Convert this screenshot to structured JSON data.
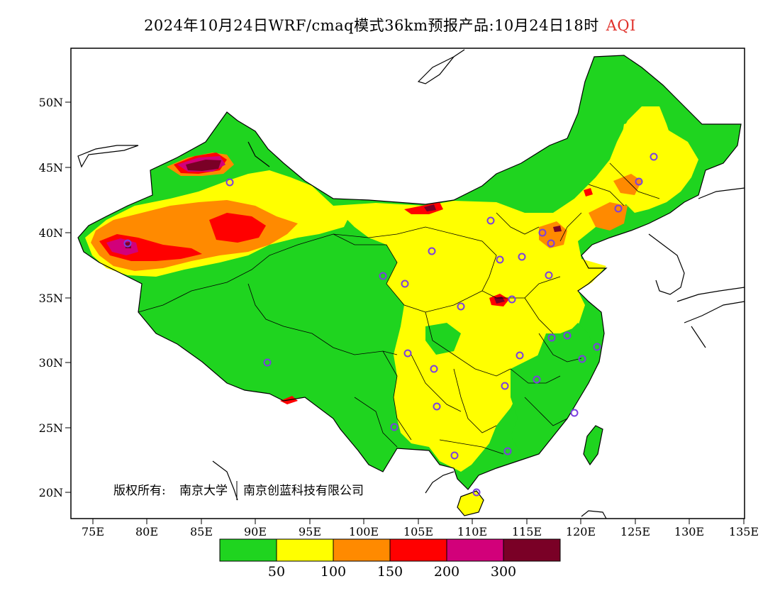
{
  "title": {
    "main": "2024年10月24日WRF/cmaq模式36km预报产品:10月24日18时",
    "variable": "AQI"
  },
  "copyright": {
    "label": "版权所有:",
    "org1": "南京大学",
    "org2": "南京创蓝科技有限公司"
  },
  "axes": {
    "x_ticks": [
      "75E",
      "80E",
      "85E",
      "90E",
      "95E",
      "100E",
      "105E",
      "110E",
      "115E",
      "120E",
      "125E",
      "130E",
      "135E"
    ],
    "y_ticks": [
      "50N",
      "45N",
      "40N",
      "35N",
      "30N",
      "25N",
      "20N"
    ]
  },
  "legend": {
    "colors": [
      "#1fd41f",
      "#ffff00",
      "#ff8a00",
      "#ff0000",
      "#d2007a",
      "#7a0026"
    ],
    "labels": [
      "50",
      "100",
      "150",
      "200",
      "300"
    ]
  },
  "colors": {
    "ocean": "#ffffff",
    "border": "#000000",
    "station_ring": "#7b3fe0",
    "aqi_good": "#1fd41f",
    "aqi_moderate": "#ffff00",
    "aqi_usg": "#ff8a00",
    "aqi_unhealthy": "#ff0000",
    "aqi_very_unhealthy": "#d2007a",
    "aqi_hazardous": "#7a0026"
  }
}
